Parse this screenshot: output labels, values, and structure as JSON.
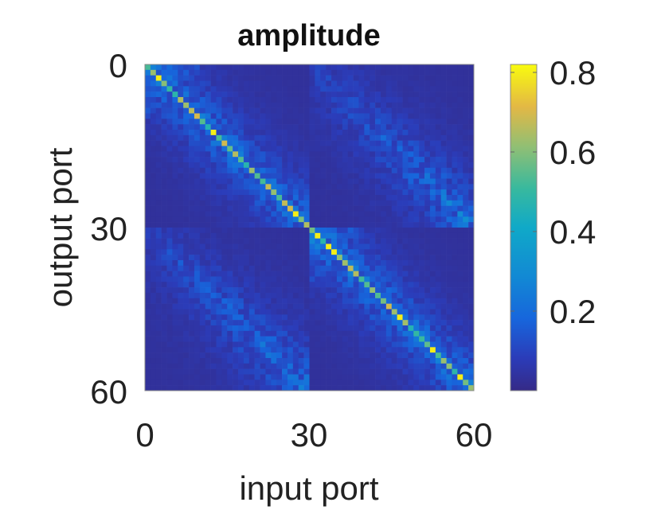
{
  "chart_data": {
    "type": "heatmap",
    "title": "amplitude",
    "xlabel": "input port",
    "ylabel": "output port",
    "x_ticks": [
      "0",
      "30",
      "60"
    ],
    "y_ticks": [
      "0",
      "30",
      "60"
    ],
    "xlim": [
      0,
      60
    ],
    "ylim": [
      60,
      0
    ],
    "grid_size": [
      60,
      60
    ],
    "colormap": "parula",
    "colorbar": {
      "range": [
        0,
        0.82
      ],
      "ticks": [
        "0.2",
        "0.4",
        "0.6",
        "0.8"
      ],
      "tick_values": [
        0.2,
        0.4,
        0.6,
        0.8
      ],
      "placement": "right"
    },
    "block_structure": "two 30x30 diagonal blocks and two off-diagonal coupling blocks",
    "diagonal_peak_value": 0.8,
    "diagonal_typical_value": 0.45,
    "near_diagonal_value": 0.2,
    "off_diagonal_band_value": 0.15,
    "background_value": 0.03
  }
}
